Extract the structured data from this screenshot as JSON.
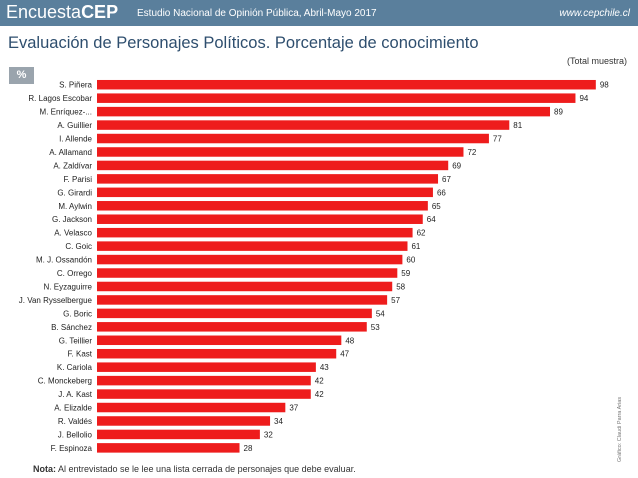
{
  "header": {
    "logo_prefix": "Encuesta",
    "logo_suffix": "CEP",
    "title": "Estudio Nacional de Opinión Pública, Abril-Mayo 2017",
    "url": "www.cepchile.cl",
    "background_color": "#5a7f9c"
  },
  "page_title": "Evaluación de Personajes Políticos. Porcentaje de conocimiento",
  "subtitle": "(Total muestra)",
  "unit_badge": "%",
  "credit": "Gráfico: Claudi Parra Arias",
  "footnote": {
    "label": "Nota:",
    "text": " Al entrevistado se le lee una lista cerrada de personajes que debe evaluar."
  },
  "chart_data": {
    "type": "bar",
    "orientation": "horizontal",
    "categories": [
      "S. Piñera",
      "R. Lagos Escobar",
      "M. Enríquez-...",
      "A. Guillier",
      "I. Allende",
      "A. Allamand",
      "A. Zaldívar",
      "F. Parisi",
      "G. Girardi",
      "M. Aylwin",
      "G. Jackson",
      "A. Velasco",
      "C. Goic",
      "M. J. Ossandón",
      "C. Orrego",
      "N. Eyzaguirre",
      "J. Van Rysselbergue",
      "G. Boric",
      "B. Sánchez",
      "G. Teillier",
      "F. Kast",
      "K. Cariola",
      "C. Monckeberg",
      "J. A. Kast",
      "A. Elizalde",
      "R. Valdés",
      "J. Bellolio",
      "F. Espinoza"
    ],
    "values": [
      98,
      94,
      89,
      81,
      77,
      72,
      69,
      67,
      66,
      65,
      64,
      62,
      61,
      60,
      59,
      58,
      57,
      54,
      53,
      48,
      47,
      43,
      42,
      42,
      37,
      34,
      32,
      28
    ],
    "xlim": [
      0,
      100
    ],
    "bar_color": "#ee1c1c",
    "grid": false,
    "legend": "none"
  }
}
